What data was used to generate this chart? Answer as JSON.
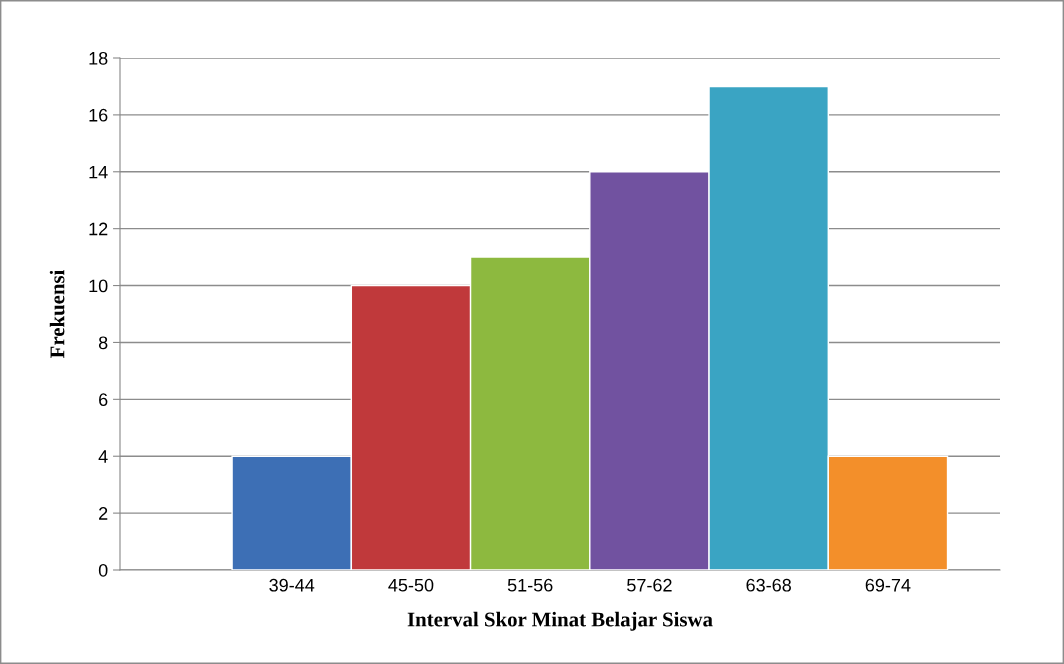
{
  "chart_data": {
    "type": "bar",
    "xlabel": "Interval Skor Minat Belajar Siswa",
    "ylabel": "Frekuensi",
    "categories": [
      "39-44",
      "45-50",
      "51-56",
      "57-62",
      "63-68",
      "69-74"
    ],
    "values": [
      4,
      10,
      11,
      14,
      17,
      4
    ],
    "colors": [
      "#3d6fb5",
      "#c0393b",
      "#8db93f",
      "#7152a0",
      "#3aa4c3",
      "#f38f2a"
    ],
    "ylim": [
      0,
      18
    ],
    "yticks": [
      0,
      2,
      4,
      6,
      8,
      10,
      12,
      14,
      16,
      18
    ],
    "grid": "y"
  }
}
